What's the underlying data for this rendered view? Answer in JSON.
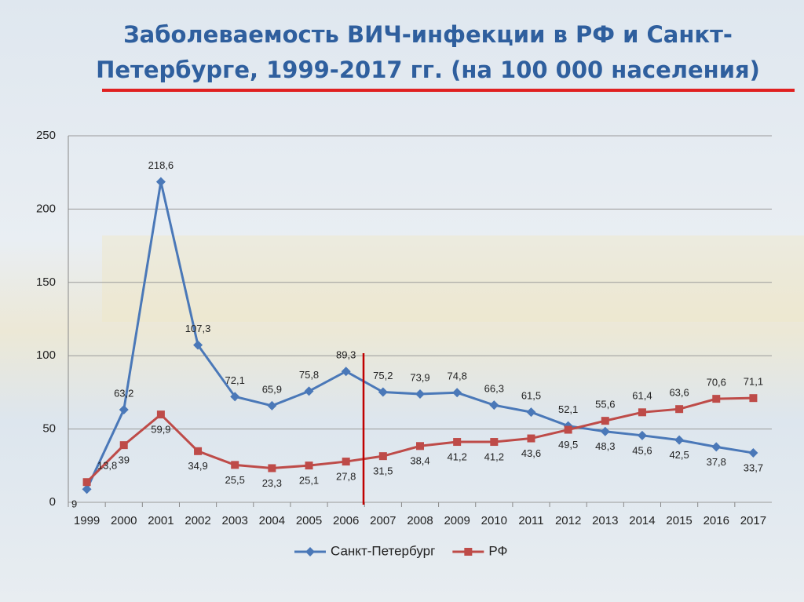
{
  "chart_data": {
    "type": "line",
    "title": [
      "Заболеваемость ВИЧ-инфекции в РФ и Санкт-",
      "Петербурге, 1999-2017 гг. (на 100 000 населения)"
    ],
    "categories": [
      "1999",
      "2000",
      "2001",
      "2002",
      "2003",
      "2004",
      "2005",
      "2006",
      "2007",
      "2008",
      "2009",
      "2010",
      "2011",
      "2012",
      "2013",
      "2014",
      "2015",
      "2016",
      "2017"
    ],
    "series": [
      {
        "name": "Санкт-Петербург",
        "color": "#4a78b8",
        "marker": "diamond",
        "values": [
          9,
          63.2,
          218.6,
          107.3,
          72.1,
          65.9,
          75.8,
          89.3,
          75.2,
          73.9,
          74.8,
          66.3,
          61.5,
          52.1,
          48.3,
          45.6,
          42.5,
          37.8,
          33.7
        ],
        "value_labels": [
          "9",
          "63,2",
          "218,6",
          "107,3",
          "72,1",
          "65,9",
          "75,8",
          "89,3",
          "75,2",
          "73,9",
          "74,8",
          "66,3",
          "61,5",
          "52,1",
          "48,3",
          "45,6",
          "42,5",
          "37,8",
          "33,7"
        ]
      },
      {
        "name": "РФ",
        "color": "#be4b48",
        "marker": "square",
        "values": [
          13.8,
          39,
          59.9,
          34.9,
          25.5,
          23.3,
          25.1,
          27.8,
          31.5,
          38.4,
          41.2,
          41.2,
          43.6,
          49.5,
          55.6,
          61.4,
          63.6,
          70.6,
          71.1
        ],
        "value_labels": [
          "13,8",
          "39",
          "59,9",
          "34,9",
          "25,5",
          "23,3",
          "25,1",
          "27,8",
          "31,5",
          "38,4",
          "41,2",
          "41,2",
          "43,6",
          "49,5",
          "55,6",
          "61,4",
          "63,6",
          "70,6",
          "71,1"
        ]
      }
    ],
    "ylim": [
      0,
      250
    ],
    "yticks": [
      0,
      50,
      100,
      150,
      200,
      250
    ],
    "grid": true,
    "legend": "bottom"
  }
}
